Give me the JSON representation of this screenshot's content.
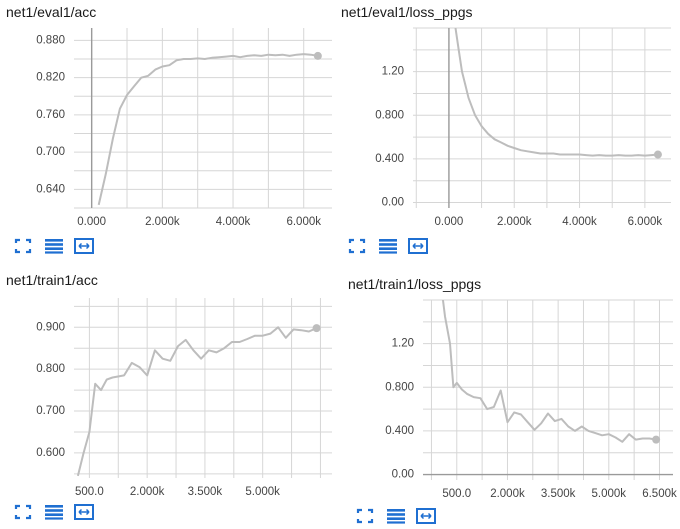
{
  "colors": {
    "line": "#bdbdbd",
    "grid": "#d6d6d6",
    "axis": "#9a9a9a",
    "icon": "#1f6fd1"
  },
  "icons": [
    "fit-domain-icon",
    "data-table-icon",
    "expand-icon"
  ],
  "chart_data": [
    {
      "type": "line",
      "title": "net1/eval1/acc",
      "xlim": [
        -500,
        6800
      ],
      "ylim": [
        0.61,
        0.9
      ],
      "xticks": [
        0,
        2000,
        4000,
        6000
      ],
      "xtick_labels": [
        "0.000",
        "2.000k",
        "4.000k",
        "6.000k"
      ],
      "yticks": [
        0.64,
        0.7,
        0.76,
        0.82,
        0.88
      ],
      "ytick_labels": [
        "0.640",
        "0.700",
        "0.760",
        "0.820",
        "0.880"
      ],
      "vline_x": 0,
      "grid": true,
      "x": [
        200,
        400,
        600,
        800,
        1000,
        1200,
        1400,
        1600,
        1800,
        2000,
        2200,
        2400,
        2600,
        2800,
        3000,
        3200,
        3400,
        3600,
        3800,
        4000,
        4200,
        4400,
        4600,
        4800,
        5000,
        5200,
        5400,
        5600,
        5800,
        6000,
        6200,
        6400
      ],
      "y": [
        0.615,
        0.665,
        0.722,
        0.77,
        0.792,
        0.806,
        0.82,
        0.823,
        0.833,
        0.838,
        0.84,
        0.848,
        0.85,
        0.85,
        0.851,
        0.85,
        0.852,
        0.853,
        0.854,
        0.855,
        0.853,
        0.855,
        0.856,
        0.855,
        0.857,
        0.856,
        0.857,
        0.855,
        0.857,
        0.858,
        0.857,
        0.855
      ]
    },
    {
      "type": "line",
      "title": "net1/eval1/loss_ppgs",
      "xlim": [
        -1100,
        6800
      ],
      "ylim": [
        -0.05,
        1.6
      ],
      "xticks": [
        0,
        2000,
        4000,
        6000
      ],
      "xtick_labels": [
        "0.000",
        "2.000k",
        "4.000k",
        "6.000k"
      ],
      "yticks": [
        0.0,
        0.4,
        0.8,
        1.2
      ],
      "ytick_labels": [
        "0.00",
        "0.400",
        "0.800",
        "1.20"
      ],
      "vline_x": 0,
      "grid": true,
      "x": [
        200,
        300,
        400,
        500,
        600,
        800,
        1000,
        1200,
        1400,
        1600,
        1800,
        2000,
        2200,
        2400,
        2600,
        2800,
        3000,
        3200,
        3400,
        3600,
        3800,
        4000,
        4200,
        4400,
        4600,
        4800,
        5000,
        5200,
        5400,
        5600,
        5800,
        6000,
        6200,
        6400
      ],
      "y": [
        1.6,
        1.4,
        1.2,
        1.08,
        0.96,
        0.8,
        0.7,
        0.63,
        0.58,
        0.55,
        0.52,
        0.5,
        0.48,
        0.47,
        0.46,
        0.45,
        0.45,
        0.45,
        0.44,
        0.44,
        0.44,
        0.44,
        0.435,
        0.43,
        0.435,
        0.43,
        0.43,
        0.435,
        0.43,
        0.43,
        0.435,
        0.43,
        0.435,
        0.44
      ]
    },
    {
      "type": "line",
      "title": "net1/train1/acc",
      "xlim": [
        100,
        6800
      ],
      "ylim": [
        0.54,
        0.97
      ],
      "xticks": [
        500,
        2000,
        3500,
        5000
      ],
      "xtick_labels": [
        "500.0",
        "2.000k",
        "3.500k",
        "5.000k"
      ],
      "yticks": [
        0.6,
        0.7,
        0.8,
        0.9
      ],
      "ytick_labels": [
        "0.600",
        "0.700",
        "0.800",
        "0.900"
      ],
      "grid": true,
      "x": [
        200,
        350,
        500,
        650,
        800,
        950,
        1100,
        1400,
        1600,
        1800,
        2000,
        2200,
        2400,
        2600,
        2800,
        3000,
        3200,
        3400,
        3600,
        3800,
        4000,
        4200,
        4400,
        4600,
        4800,
        5000,
        5200,
        5400,
        5600,
        5800,
        6000,
        6200,
        6400
      ],
      "y": [
        0.545,
        0.6,
        0.65,
        0.765,
        0.75,
        0.775,
        0.78,
        0.785,
        0.815,
        0.805,
        0.785,
        0.845,
        0.825,
        0.82,
        0.855,
        0.87,
        0.845,
        0.825,
        0.845,
        0.84,
        0.85,
        0.865,
        0.865,
        0.872,
        0.88,
        0.88,
        0.885,
        0.9,
        0.875,
        0.895,
        0.893,
        0.89,
        0.898
      ]
    },
    {
      "type": "line",
      "title": "net1/train1/loss_ppgs",
      "xlim": [
        -500,
        6900
      ],
      "ylim": [
        -0.05,
        1.6
      ],
      "xticks": [
        500,
        2000,
        3500,
        5000,
        6500
      ],
      "xtick_labels": [
        "500.0",
        "2.000k",
        "3.500k",
        "5.000k",
        "6.500k"
      ],
      "yticks": [
        0.0,
        0.4,
        0.8,
        1.2
      ],
      "ytick_labels": [
        "0.00",
        "0.400",
        "0.800",
        "1.20"
      ],
      "hline_y": 0,
      "grid": true,
      "x": [
        50,
        150,
        300,
        400,
        500,
        650,
        800,
        1000,
        1200,
        1400,
        1600,
        1800,
        2000,
        2200,
        2400,
        2600,
        2800,
        3000,
        3200,
        3400,
        3600,
        3800,
        4000,
        4200,
        4400,
        4600,
        4800,
        5000,
        5200,
        5400,
        5600,
        5800,
        6000,
        6200,
        6400
      ],
      "y": [
        1.7,
        1.45,
        1.2,
        0.8,
        0.84,
        0.78,
        0.74,
        0.71,
        0.7,
        0.6,
        0.62,
        0.77,
        0.48,
        0.57,
        0.55,
        0.48,
        0.41,
        0.47,
        0.56,
        0.49,
        0.51,
        0.44,
        0.4,
        0.44,
        0.4,
        0.38,
        0.36,
        0.37,
        0.34,
        0.3,
        0.37,
        0.32,
        0.33,
        0.33,
        0.32
      ]
    }
  ]
}
